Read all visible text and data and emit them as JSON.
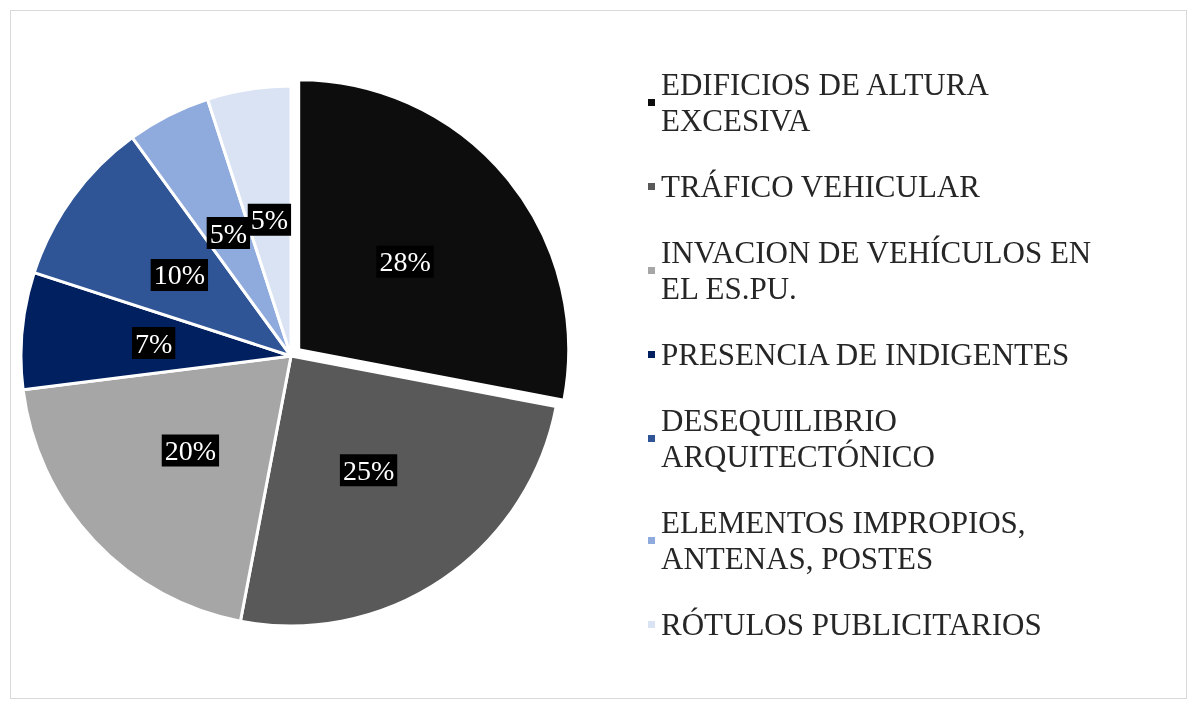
{
  "chart_data": {
    "type": "pie",
    "categories": [
      "EDIFICIOS DE ALTURA EXCESIVA",
      "TRÁFICO VEHICULAR",
      "INVACION DE VEHÍCULOS EN EL ES.PU.",
      "PRESENCIA DE INDIGENTES",
      "DESEQUILIBRIO ARQUITECTÓNICO",
      "ELEMENTOS IMPROPIOS, ANTENAS, POSTES",
      "RÓTULOS PUBLICITARIOS"
    ],
    "values": [
      28,
      25,
      20,
      7,
      10,
      5,
      5
    ],
    "value_labels": [
      "28%",
      "25%",
      "20%",
      "7%",
      "10%",
      "5%",
      "5%"
    ],
    "colors": [
      "#0d0d0d",
      "#595959",
      "#a6a6a6",
      "#002060",
      "#2f5597",
      "#8faadc",
      "#dae3f3"
    ],
    "legend": "right"
  }
}
